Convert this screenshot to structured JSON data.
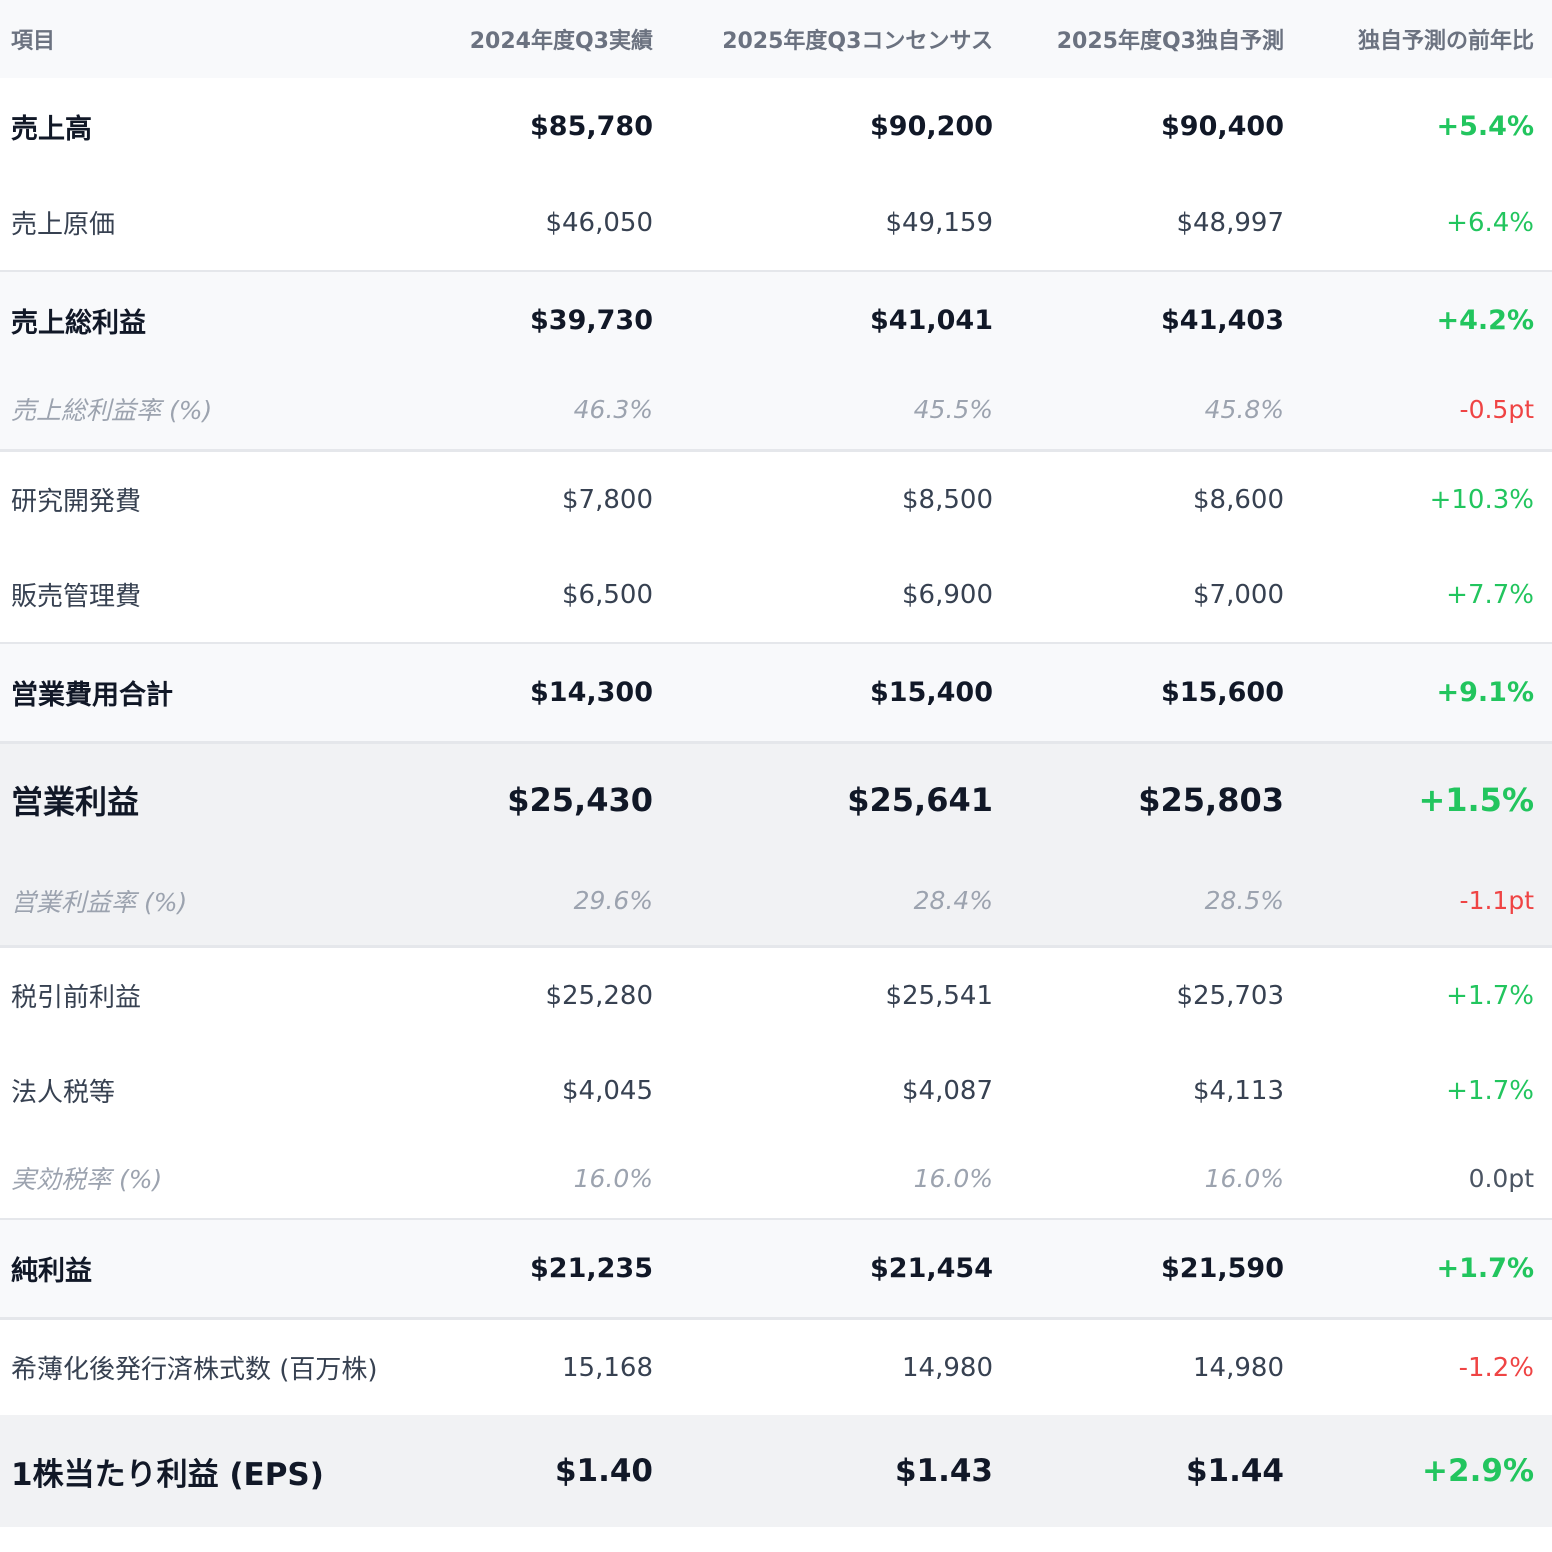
{
  "headers": {
    "item": "項目",
    "actual_2024q3": "2024年度Q3実績",
    "consensus_2025q3": "2025年度Q3コンセンサス",
    "forecast_2025q3": "2025年度Q3独自予測",
    "yoy": "独自予測の前年比"
  },
  "rows": [
    {
      "label": "売上高",
      "actual": "$85,780",
      "consensus": "$90,200",
      "forecast": "$90,400",
      "yoy": "+5.4%",
      "yoy_sign": "pos"
    },
    {
      "label": "売上原価",
      "actual": "$46,050",
      "consensus": "$49,159",
      "forecast": "$48,997",
      "yoy": "+6.4%",
      "yoy_sign": "pos"
    },
    {
      "label": "売上総利益",
      "actual": "$39,730",
      "consensus": "$41,041",
      "forecast": "$41,403",
      "yoy": "+4.2%",
      "yoy_sign": "pos"
    },
    {
      "label": "売上総利益率 (%)",
      "actual": "46.3%",
      "consensus": "45.5%",
      "forecast": "45.8%",
      "yoy": "-0.5pt",
      "yoy_sign": "neg"
    },
    {
      "label": "研究開発費",
      "actual": "$7,800",
      "consensus": "$8,500",
      "forecast": "$8,600",
      "yoy": "+10.3%",
      "yoy_sign": "pos"
    },
    {
      "label": "販売管理費",
      "actual": "$6,500",
      "consensus": "$6,900",
      "forecast": "$7,000",
      "yoy": "+7.7%",
      "yoy_sign": "pos"
    },
    {
      "label": "営業費用合計",
      "actual": "$14,300",
      "consensus": "$15,400",
      "forecast": "$15,600",
      "yoy": "+9.1%",
      "yoy_sign": "pos"
    },
    {
      "label": "営業利益",
      "actual": "$25,430",
      "consensus": "$25,641",
      "forecast": "$25,803",
      "yoy": "+1.5%",
      "yoy_sign": "pos"
    },
    {
      "label": "営業利益率 (%)",
      "actual": "29.6%",
      "consensus": "28.4%",
      "forecast": "28.5%",
      "yoy": "-1.1pt",
      "yoy_sign": "neg"
    },
    {
      "label": "税引前利益",
      "actual": "$25,280",
      "consensus": "$25,541",
      "forecast": "$25,703",
      "yoy": "+1.7%",
      "yoy_sign": "pos"
    },
    {
      "label": "法人税等",
      "actual": "$4,045",
      "consensus": "$4,087",
      "forecast": "$4,113",
      "yoy": "+1.7%",
      "yoy_sign": "pos"
    },
    {
      "label": "実効税率 (%)",
      "actual": "16.0%",
      "consensus": "16.0%",
      "forecast": "16.0%",
      "yoy": "0.0pt",
      "yoy_sign": "neu"
    },
    {
      "label": "純利益",
      "actual": "$21,235",
      "consensus": "$21,454",
      "forecast": "$21,590",
      "yoy": "+1.7%",
      "yoy_sign": "pos"
    },
    {
      "label": "希薄化後発行済株式数 (百万株)",
      "actual": "15,168",
      "consensus": "14,980",
      "forecast": "14,980",
      "yoy": "-1.2%",
      "yoy_sign": "neg"
    },
    {
      "label": "1株当たり利益 (EPS)",
      "actual": "$1.40",
      "consensus": "$1.43",
      "forecast": "$1.44",
      "yoy": "+2.9%",
      "yoy_sign": "pos"
    }
  ],
  "colors": {
    "positive": "#22c55e",
    "negative": "#ef4444",
    "neutral": "#4b5563"
  }
}
